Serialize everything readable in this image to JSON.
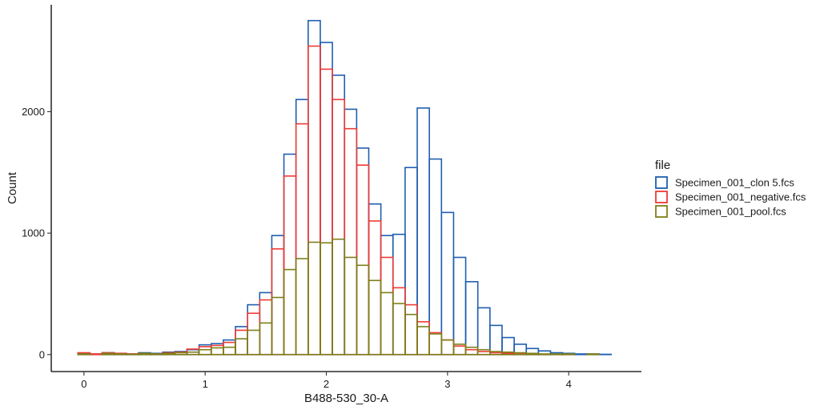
{
  "chart_data": {
    "type": "histogram",
    "title": "",
    "xlabel": "B488-530_30-A",
    "ylabel": "Count",
    "xlim": [
      -0.27,
      4.6
    ],
    "ylim": [
      -140,
      2880
    ],
    "x_ticks": [
      0,
      1,
      2,
      3,
      4
    ],
    "y_ticks": [
      0,
      1000,
      2000
    ],
    "grid": false,
    "legend": {
      "title": "file",
      "position": "right"
    },
    "bin_width": 0.1,
    "bin_centers": [
      0.0,
      0.1,
      0.2,
      0.3,
      0.4,
      0.5,
      0.6,
      0.7,
      0.8,
      0.9,
      1.0,
      1.1,
      1.2,
      1.3,
      1.4,
      1.5,
      1.6,
      1.7,
      1.8,
      1.9,
      2.0,
      2.1,
      2.2,
      2.3,
      2.4,
      2.5,
      2.6,
      2.7,
      2.8,
      2.9,
      3.0,
      3.1,
      3.2,
      3.3,
      3.4,
      3.5,
      3.6,
      3.7,
      3.8,
      3.9,
      4.0,
      4.1,
      4.2,
      4.3
    ],
    "series": [
      {
        "name": "Specimen_001_clon 5.fcs",
        "color": "#1f5fb0",
        "values": [
          10,
          5,
          15,
          10,
          5,
          15,
          10,
          20,
          25,
          40,
          80,
          90,
          120,
          230,
          410,
          510,
          980,
          1650,
          2100,
          2750,
          2570,
          2300,
          2020,
          1700,
          1240,
          980,
          990,
          1540,
          2030,
          1610,
          1170,
          800,
          600,
          385,
          240,
          140,
          85,
          50,
          30,
          15,
          10,
          5,
          5,
          2
        ]
      },
      {
        "name": "Specimen_001_negative.fcs",
        "color": "#ef3b36",
        "values": [
          15,
          5,
          15,
          10,
          5,
          10,
          5,
          15,
          20,
          45,
          65,
          75,
          100,
          200,
          340,
          450,
          870,
          1470,
          1900,
          2540,
          2350,
          2100,
          1860,
          1560,
          1100,
          800,
          550,
          410,
          270,
          180,
          120,
          70,
          40,
          25,
          15,
          10,
          5,
          5,
          2,
          2,
          2,
          0,
          0,
          0
        ]
      },
      {
        "name": "Specimen_001_pool.fcs",
        "color": "#7f7f1a",
        "values": [
          5,
          0,
          10,
          5,
          2,
          10,
          5,
          10,
          15,
          20,
          40,
          55,
          60,
          130,
          200,
          260,
          470,
          700,
          790,
          925,
          920,
          950,
          800,
          735,
          610,
          510,
          420,
          330,
          230,
          170,
          120,
          85,
          60,
          40,
          25,
          20,
          15,
          10,
          5,
          5,
          5,
          0,
          5,
          0
        ]
      }
    ]
  }
}
